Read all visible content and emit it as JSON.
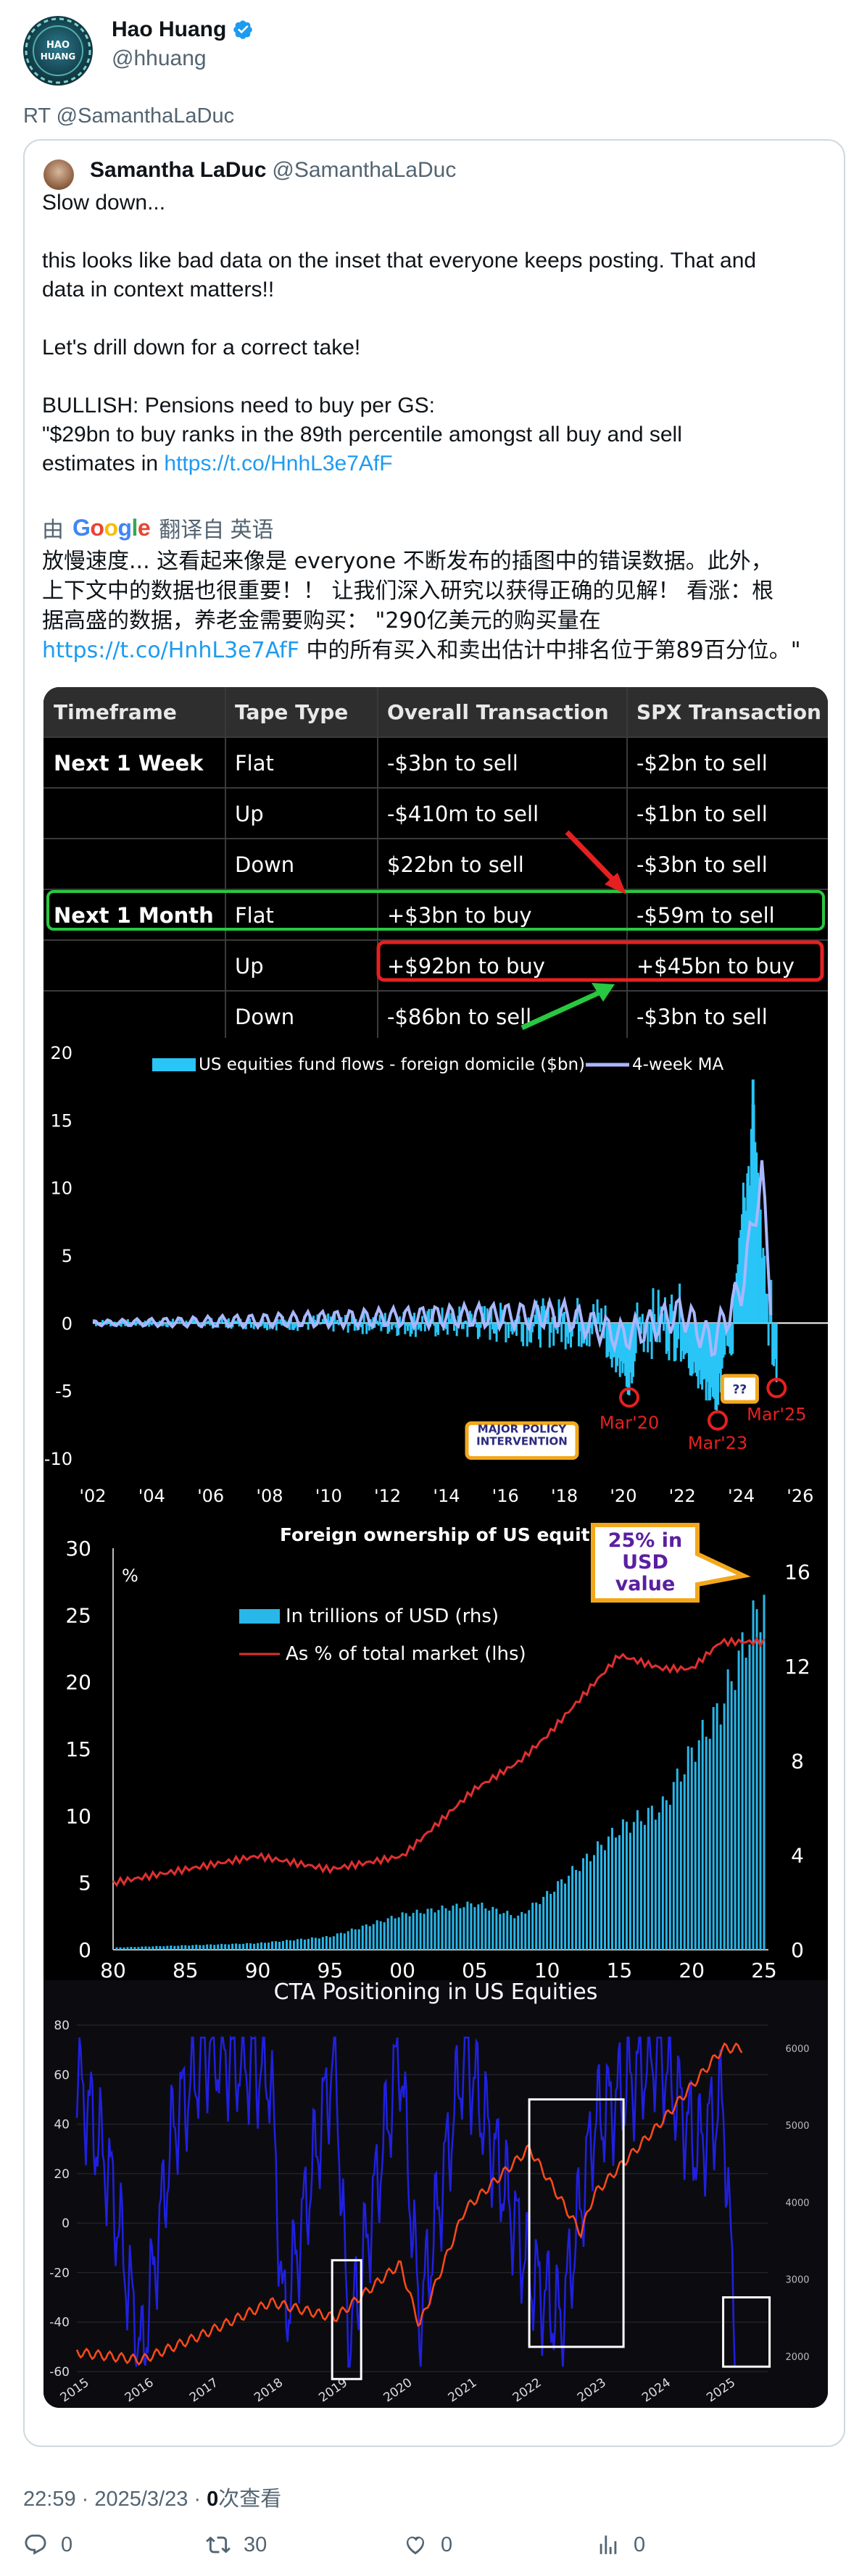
{
  "author": {
    "display_name": "Hao Huang",
    "handle": "@hhuang",
    "avatar_text": "HAO HUANG"
  },
  "retweet_label": "RT @SamanthaLaDuc",
  "quoted": {
    "display_name": "Samantha LaDuc",
    "handle": "@SamanthaLaDuc",
    "text_lines": [
      "Slow down...",
      "this looks like bad data on the inset that everyone keeps posting. That and",
      "data in context matters!!",
      "Let's drill down for a correct take!",
      "BULLISH: Pensions need to buy per GS:",
      "\"$29bn to buy ranks in the 89th percentile amongst all buy and sell",
      "estimates in "
    ],
    "link": "https://t.co/HnhL3e7AfF",
    "translate": {
      "prefix": "由",
      "google_letters": [
        "G",
        "o",
        "o",
        "g",
        "l",
        "e"
      ],
      "suffix": "翻译自 英语"
    },
    "translated_lines": [
      "放慢速度... 这看起来像是 everyone 不断发布的插图中的错误数据。此外，",
      "上下文中的数据也很重要！！ 让我们深入研究以获得正确的见解！ 看涨：根",
      "据高盛的数据，养老金需要购买：  \"290亿美元的购买量在",
      " 中的所有买入和卖出估计中排名位于第89百分位。\""
    ]
  },
  "table": {
    "headers": [
      "Timeframe",
      "Tape Type",
      "Overall Transaction",
      "SPX Transaction"
    ],
    "rows": [
      [
        "Next 1 Week",
        "Flat",
        "-$3bn to sell",
        "-$2bn to sell"
      ],
      [
        "",
        "Up",
        "-$410m to sell",
        "-$1bn to sell"
      ],
      [
        "",
        "Down",
        "$22bn to sell",
        "-$3bn to sell"
      ],
      [
        "Next 1 Month",
        "Flat",
        "+$3bn to buy",
        "-$59m to sell"
      ],
      [
        "",
        "Up",
        "+$92bn to buy",
        "+$45bn to buy"
      ],
      [
        "",
        "Down",
        "-$86bn to sell",
        "-$3bn to sell"
      ]
    ]
  },
  "chart_data": [
    {
      "type": "line",
      "title": "",
      "legend": [
        "US equities fund flows - foreign domicile ($bn)",
        "4-week MA"
      ],
      "legend_placement": "top",
      "x_ticks": [
        "'02",
        "'04",
        "'06",
        "'08",
        "'10",
        "'12",
        "'14",
        "'16",
        "'18",
        "'20",
        "'22",
        "'24",
        "'26"
      ],
      "ylim": [
        -10,
        20
      ],
      "y_ticks": [
        20,
        15,
        10,
        5,
        0,
        -5,
        -10
      ],
      "series": [
        {
          "name": "US equities fund flows - foreign domicile ($bn)",
          "color": "#29c5f6",
          "x": [
            2002,
            2004,
            2006,
            2008,
            2010,
            2012,
            2014,
            2016,
            2018,
            2019,
            2020.2,
            2021,
            2022,
            2023.2,
            2023.8,
            2024.4,
            2024.7,
            2025.0,
            2025.2
          ],
          "y": [
            0,
            0.2,
            0.4,
            -0.6,
            0.8,
            -0.9,
            1.2,
            -1.5,
            1.8,
            -1.6,
            -5.5,
            2.2,
            -3.0,
            -7.2,
            4.5,
            18.0,
            8.0,
            -2.0,
            -4.8
          ]
        },
        {
          "name": "4-week MA",
          "color": "#a9b7ff",
          "x": [
            2002,
            2006,
            2010,
            2014,
            2018,
            2020,
            2022,
            2023,
            2024,
            2024.7,
            2025.0
          ],
          "y": [
            0,
            0.1,
            0.3,
            0.5,
            0.6,
            -1.0,
            0.8,
            -1.5,
            2.5,
            11.0,
            2.0
          ]
        }
      ],
      "annotations": [
        "MAJOR POLICY INTERVENTION",
        "Mar'20",
        "Mar'23",
        "Mar'25",
        "??"
      ]
    },
    {
      "type": "bar",
      "title": "Foreign ownership of US equities",
      "legend": [
        "In trillions of USD (rhs)",
        "As % of total market (lhs)"
      ],
      "legend_placement": "top-left",
      "x_ticks": [
        "80",
        "85",
        "90",
        "95",
        "00",
        "05",
        "10",
        "15",
        "20",
        "25"
      ],
      "y_left_unit": "%",
      "y_left_ticks": [
        30,
        25,
        20,
        15,
        10,
        5,
        0
      ],
      "y_right_ticks": [
        16,
        12,
        8,
        4,
        0
      ],
      "series": [
        {
          "name": "In trillions of USD (rhs)",
          "color": "#29b6e8",
          "x": [
            1980,
            1985,
            1990,
            1995,
            2000,
            2005,
            2008,
            2010,
            2015,
            2018,
            2020,
            2022,
            2024,
            2025
          ],
          "y": [
            0.1,
            0.2,
            0.3,
            0.6,
            1.6,
            2.1,
            1.5,
            2.5,
            5.5,
            6.5,
            9.0,
            11.0,
            14.5,
            16.0
          ]
        },
        {
          "name": "As % of total market (lhs)",
          "color": "#e03030",
          "x": [
            1980,
            1985,
            1990,
            1995,
            2000,
            2005,
            2008,
            2010,
            2015,
            2018,
            2020,
            2022,
            2025
          ],
          "y": [
            5,
            6,
            7,
            6,
            7,
            12,
            14,
            16,
            22,
            21,
            21,
            23,
            23
          ]
        }
      ],
      "annotations": [
        "25% in USD value"
      ]
    },
    {
      "type": "line",
      "title": "CTA Positioning in US Equities",
      "x_ticks": [
        "2015",
        "2016",
        "2017",
        "2018",
        "2019",
        "2020",
        "2021",
        "2022",
        "2023",
        "2024",
        "2025"
      ],
      "ylim": [
        -60,
        80
      ],
      "y_left_ticks": [
        80,
        60,
        40,
        20,
        0,
        -20,
        -40,
        -60
      ],
      "y_right_ticks": [
        6000,
        5000,
        4000,
        3000,
        2000
      ],
      "series": [
        {
          "name": "",
          "color": "#2020e0",
          "x": [
            2015,
            2015.5,
            2016,
            2016.5,
            2017,
            2018,
            2018.2,
            2019,
            2019.2,
            2020,
            2020.3,
            2021,
            2022,
            2022.5,
            2023,
            2024,
            2024.6,
            2025,
            2025.2
          ],
          "y": [
            60,
            20,
            -55,
            40,
            70,
            60,
            -40,
            70,
            -50,
            70,
            -40,
            70,
            -20,
            -40,
            40,
            70,
            30,
            50,
            -55
          ]
        },
        {
          "name": "",
          "color": "#ff4a1a",
          "x": [
            2015,
            2016,
            2017,
            2018,
            2019,
            2020,
            2020.3,
            2021,
            2022,
            2022.8,
            2023,
            2024,
            2025
          ],
          "y": [
            2050,
            1950,
            2300,
            2700,
            2500,
            3200,
            2400,
            3900,
            4700,
            3600,
            4100,
            5000,
            6000
          ]
        }
      ]
    }
  ],
  "meta": {
    "time": "22:59 · 2025/3/23 · ",
    "views_count": "0",
    "views_label": "次查看"
  },
  "actions": {
    "replies": "0",
    "retweets": "30",
    "likes": "0",
    "views": "0"
  }
}
